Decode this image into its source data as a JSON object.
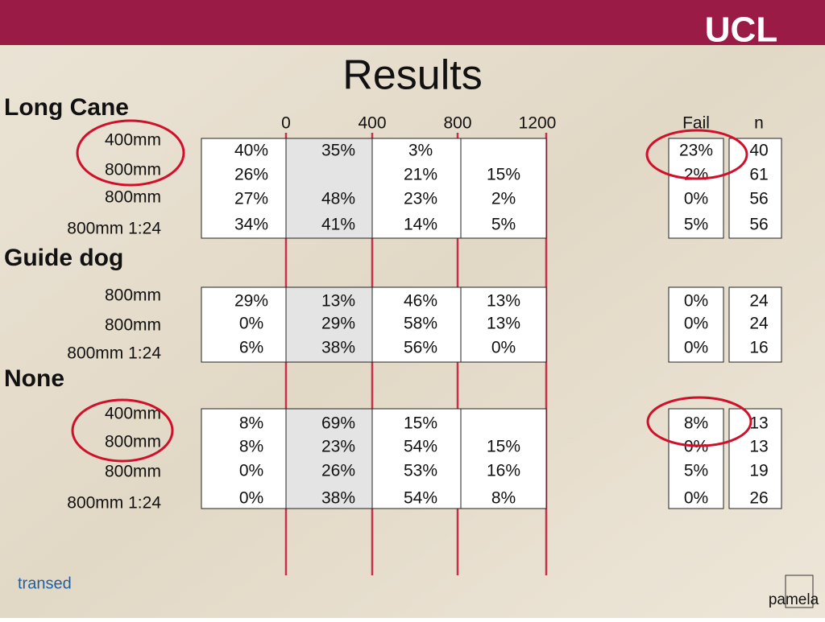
{
  "header": {
    "logo": "UCL"
  },
  "title": "Results",
  "columns": [
    "0",
    "400",
    "800",
    "1200",
    "Fail",
    "n"
  ],
  "groups": [
    {
      "label": "Long Cane",
      "rows": [
        {
          "label": "400mm",
          "cells": [
            "40%",
            "35%",
            "3%",
            null,
            "23%",
            "40"
          ]
        },
        {
          "label": "800mm",
          "cells": [
            "26%",
            null,
            "21%",
            "15%",
            "2%",
            "61"
          ]
        },
        {
          "label": "800mm",
          "cells": [
            "27%",
            "48%",
            "23%",
            "2%",
            "0%",
            "56"
          ]
        },
        {
          "label": "800mm 1:24",
          "cells": [
            "34%",
            "41%",
            "14%",
            "5%",
            "5%",
            "56"
          ]
        }
      ]
    },
    {
      "label": "Guide dog",
      "rows": [
        {
          "label": "800mm",
          "cells": [
            "29%",
            "13%",
            "46%",
            "13%",
            "0%",
            "24"
          ]
        },
        {
          "label": "800mm",
          "cells": [
            "0%",
            "29%",
            "58%",
            "13%",
            "0%",
            "24"
          ]
        },
        {
          "label": "800mm 1:24",
          "cells": [
            "6%",
            "38%",
            "56%",
            "0%",
            "0%",
            "16"
          ]
        }
      ]
    },
    {
      "label": "None",
      "rows": [
        {
          "label": "400mm",
          "cells": [
            "8%",
            "69%",
            "15%",
            null,
            "8%",
            "13"
          ]
        },
        {
          "label": "800mm",
          "cells": [
            "8%",
            "23%",
            "54%",
            "15%",
            "0%",
            "13"
          ]
        },
        {
          "label": "800mm",
          "cells": [
            "0%",
            "26%",
            "53%",
            "16%",
            "5%",
            "19"
          ]
        },
        {
          "label": "800mm 1:24",
          "cells": [
            "0%",
            "38%",
            "54%",
            "8%",
            "0%",
            "26"
          ]
        }
      ]
    }
  ],
  "footer": {
    "left_logo": "transed",
    "right_logo": "pamela"
  }
}
